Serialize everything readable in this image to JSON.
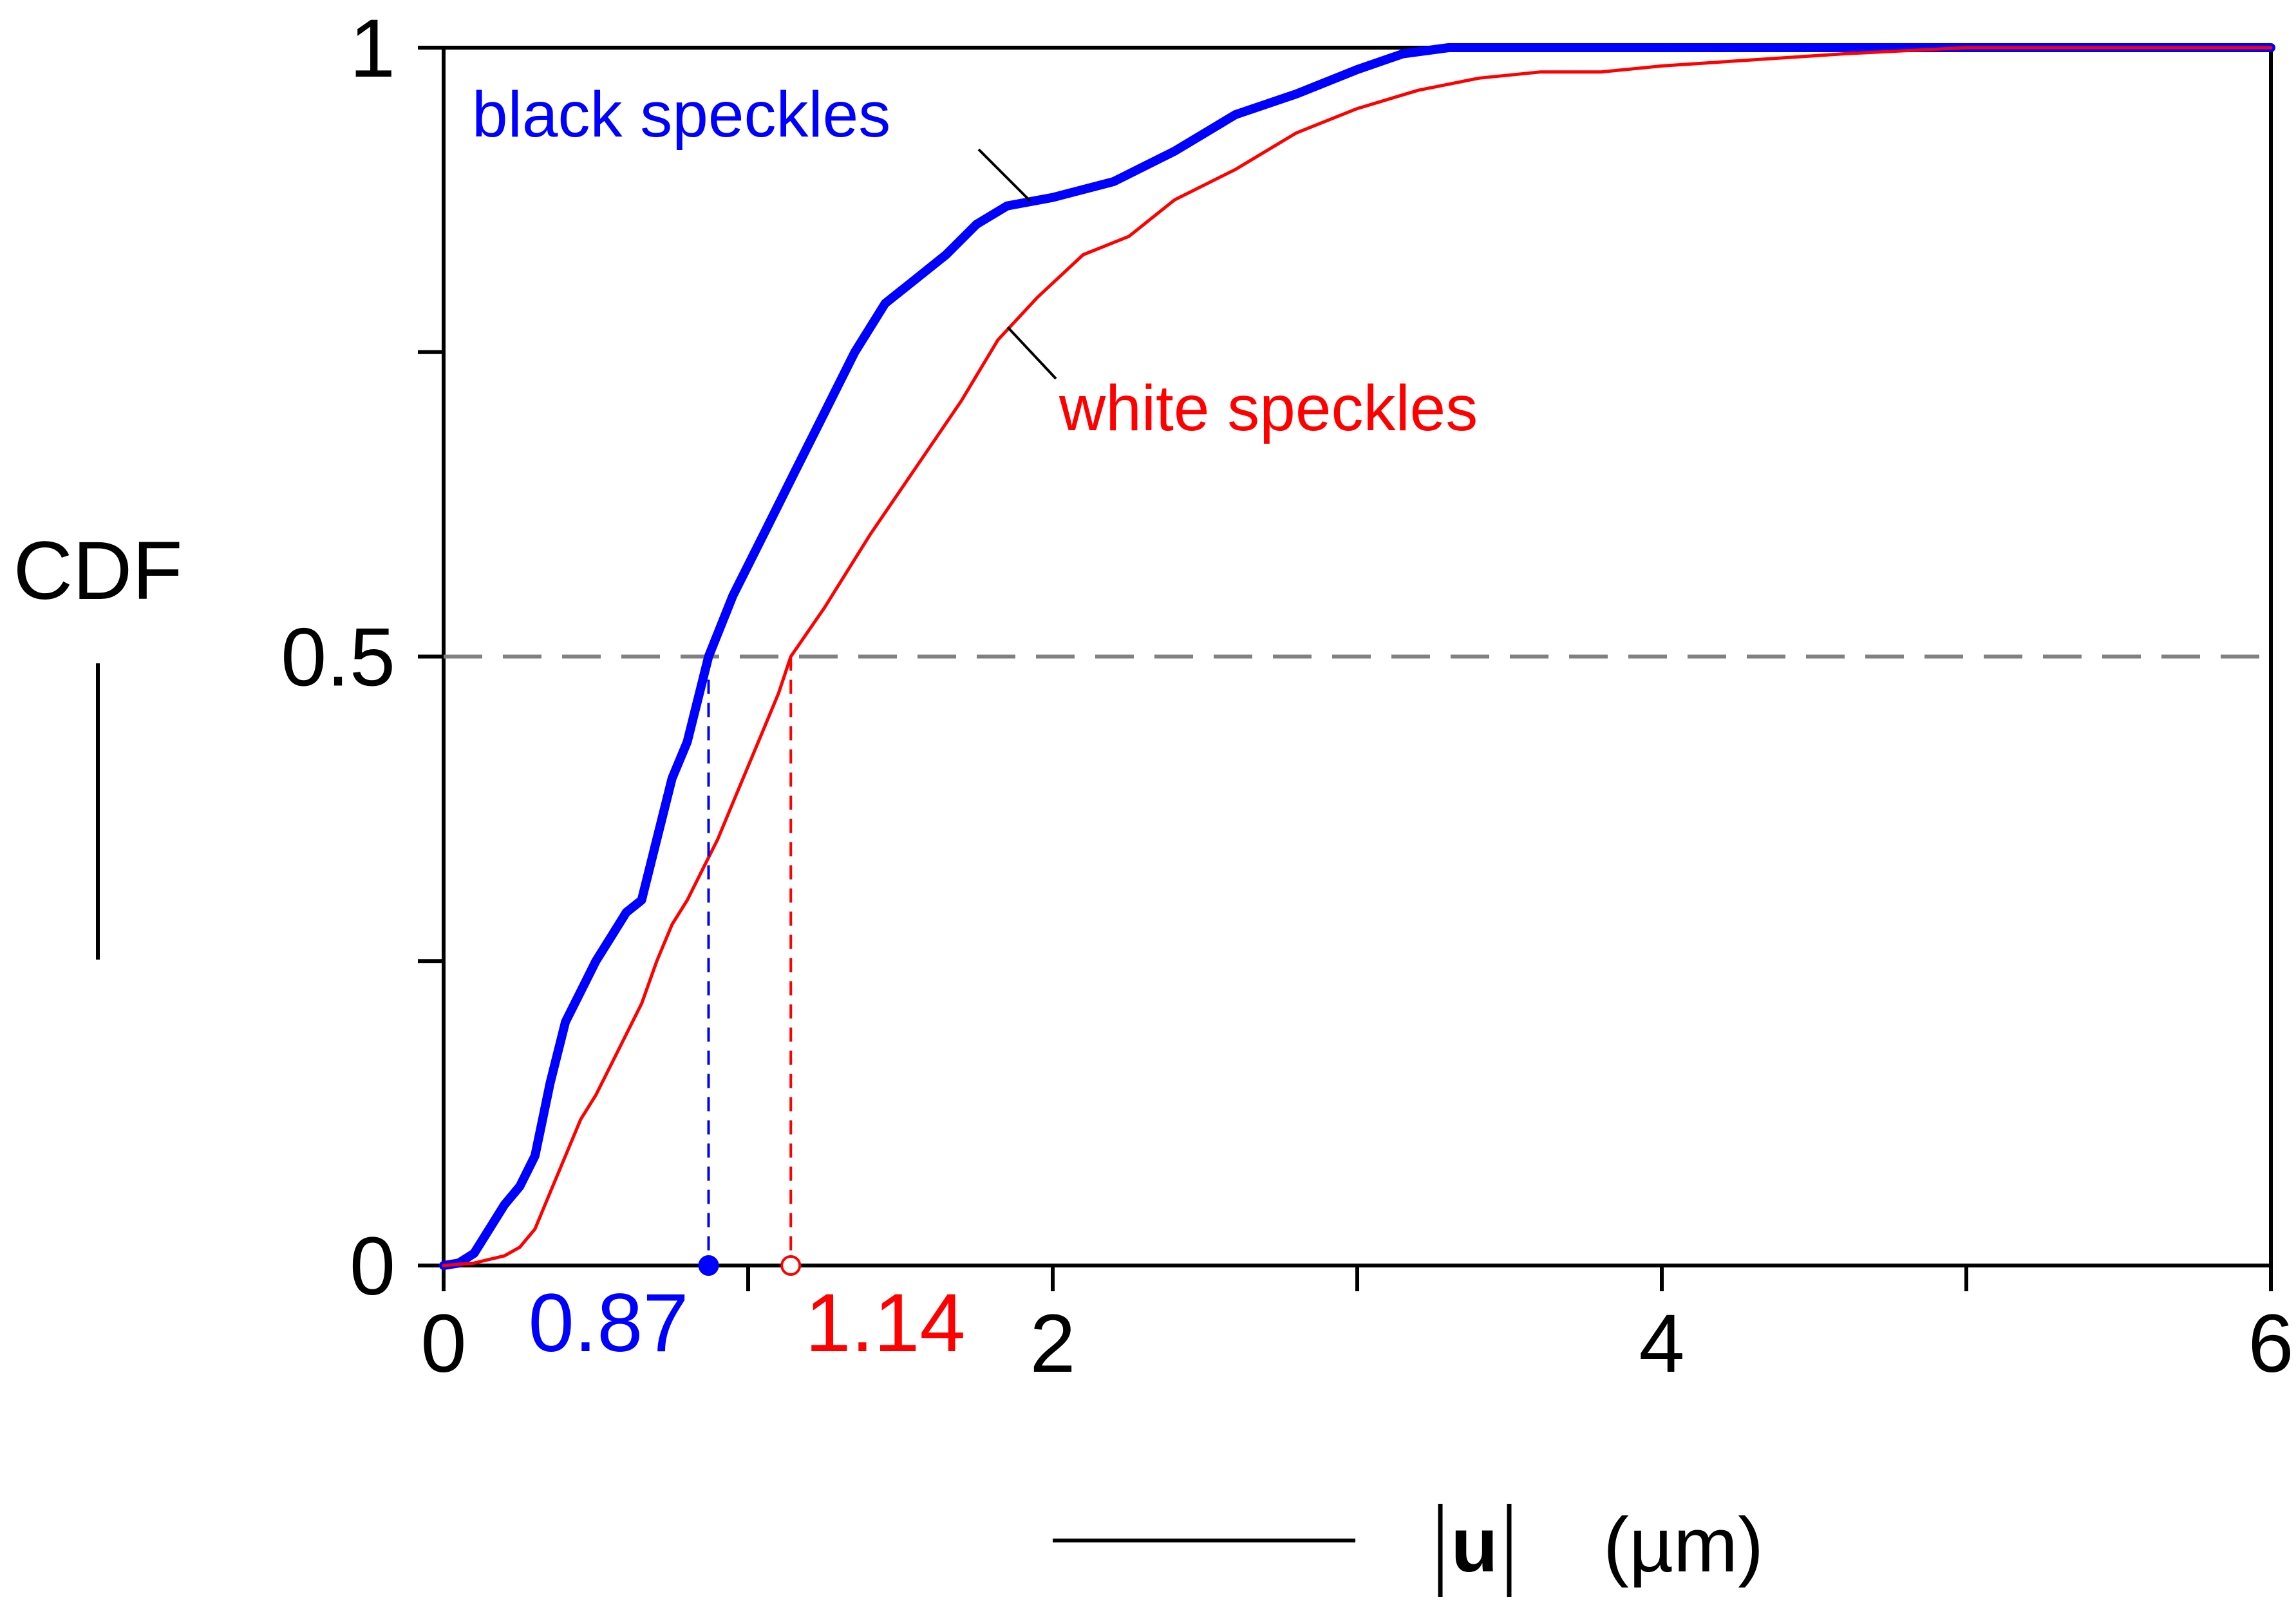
{
  "chart_data": {
    "type": "line",
    "title": "",
    "ylabel": "CDF",
    "xlabel": {
      "symbol": "u",
      "unit": "(µm)"
    },
    "xlim": [
      0,
      6
    ],
    "ylim": [
      0,
      1
    ],
    "x_ticks": [
      0,
      2,
      4,
      6
    ],
    "x_minor_ticks": [
      1,
      3,
      5
    ],
    "x_tick_labels": [
      "0",
      "2",
      "4",
      "6"
    ],
    "y_ticks": [
      0,
      0.5,
      1
    ],
    "y_minor_ticks": [
      0.25,
      0.75
    ],
    "y_tick_labels": [
      "0",
      "0.5",
      "1"
    ],
    "reference_line": {
      "y": 0.5,
      "style": "dashed",
      "color": "#808080"
    },
    "series": [
      {
        "name": "black speckles",
        "color": "#0000ff",
        "line": "thick",
        "median": 0.87,
        "median_label": "0.87",
        "points": [
          [
            0.0,
            0.0
          ],
          [
            0.05,
            0.002
          ],
          [
            0.1,
            0.01
          ],
          [
            0.15,
            0.03
          ],
          [
            0.2,
            0.05
          ],
          [
            0.25,
            0.065
          ],
          [
            0.3,
            0.09
          ],
          [
            0.35,
            0.15
          ],
          [
            0.4,
            0.2
          ],
          [
            0.45,
            0.225
          ],
          [
            0.5,
            0.25
          ],
          [
            0.55,
            0.27
          ],
          [
            0.6,
            0.29
          ],
          [
            0.65,
            0.3
          ],
          [
            0.7,
            0.35
          ],
          [
            0.75,
            0.4
          ],
          [
            0.8,
            0.43
          ],
          [
            0.87,
            0.5
          ],
          [
            0.95,
            0.55
          ],
          [
            1.05,
            0.6
          ],
          [
            1.15,
            0.65
          ],
          [
            1.25,
            0.7
          ],
          [
            1.35,
            0.75
          ],
          [
            1.45,
            0.79
          ],
          [
            1.55,
            0.81
          ],
          [
            1.65,
            0.83
          ],
          [
            1.75,
            0.855
          ],
          [
            1.85,
            0.87
          ],
          [
            2.0,
            0.877
          ],
          [
            2.2,
            0.89
          ],
          [
            2.4,
            0.915
          ],
          [
            2.6,
            0.945
          ],
          [
            2.8,
            0.962
          ],
          [
            3.0,
            0.982
          ],
          [
            3.15,
            0.995
          ],
          [
            3.3,
            1.0
          ],
          [
            4.0,
            1.0
          ],
          [
            6.0,
            1.0
          ]
        ]
      },
      {
        "name": "white speckles",
        "color": "#ff0000",
        "line": "thin",
        "median": 1.14,
        "median_label": "1.14",
        "points": [
          [
            0.0,
            0.0
          ],
          [
            0.1,
            0.002
          ],
          [
            0.2,
            0.008
          ],
          [
            0.25,
            0.015
          ],
          [
            0.3,
            0.03
          ],
          [
            0.35,
            0.06
          ],
          [
            0.4,
            0.09
          ],
          [
            0.45,
            0.12
          ],
          [
            0.5,
            0.14
          ],
          [
            0.55,
            0.165
          ],
          [
            0.6,
            0.19
          ],
          [
            0.65,
            0.215
          ],
          [
            0.7,
            0.25
          ],
          [
            0.75,
            0.28
          ],
          [
            0.8,
            0.3
          ],
          [
            0.85,
            0.325
          ],
          [
            0.9,
            0.35
          ],
          [
            0.95,
            0.38
          ],
          [
            1.0,
            0.41
          ],
          [
            1.05,
            0.44
          ],
          [
            1.1,
            0.47
          ],
          [
            1.14,
            0.5
          ],
          [
            1.25,
            0.54
          ],
          [
            1.4,
            0.6
          ],
          [
            1.55,
            0.655
          ],
          [
            1.7,
            0.71
          ],
          [
            1.82,
            0.76
          ],
          [
            1.95,
            0.795
          ],
          [
            2.1,
            0.83
          ],
          [
            2.25,
            0.845
          ],
          [
            2.4,
            0.875
          ],
          [
            2.6,
            0.9
          ],
          [
            2.8,
            0.93
          ],
          [
            3.0,
            0.95
          ],
          [
            3.2,
            0.965
          ],
          [
            3.4,
            0.975
          ],
          [
            3.6,
            0.98
          ],
          [
            3.8,
            0.98
          ],
          [
            4.0,
            0.985
          ],
          [
            4.3,
            0.99
          ],
          [
            4.6,
            0.995
          ],
          [
            5.0,
            1.0
          ],
          [
            6.0,
            1.0
          ]
        ]
      }
    ]
  }
}
